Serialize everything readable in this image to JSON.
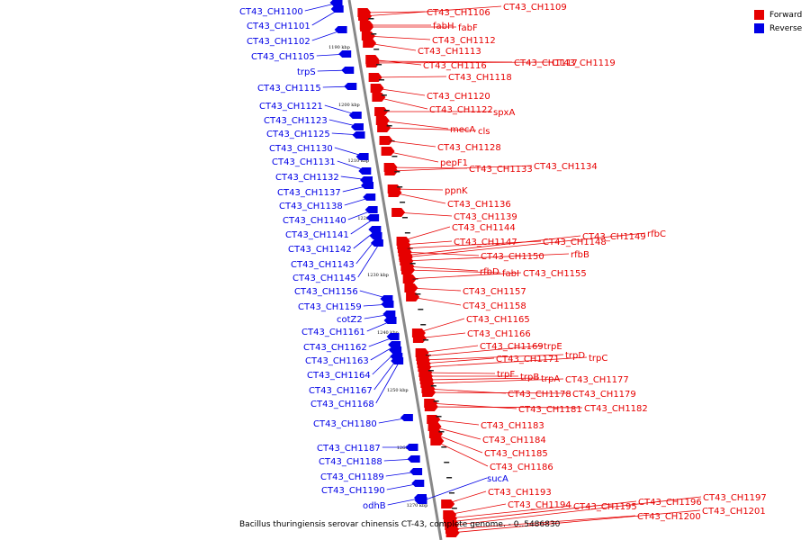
{
  "legend": [
    {
      "label": "Forward",
      "color": "#e60000"
    },
    {
      "label": "Reverse",
      "color": "#0000e6"
    }
  ],
  "colors": {
    "forward": "#e60000",
    "reverse": "#0000e6",
    "axis": "#888888"
  },
  "caption": "Bacillus thuringiensis serovar chinensis CT-43, complete genome. - 0..5486830",
  "ticks": [
    "1190 kbp",
    "1200 kbp",
    "1210 kbp",
    "1220 kbp",
    "1230 kbp",
    "1240 kbp",
    "1250 kbp",
    "1260 kbp",
    "1270 kbp"
  ],
  "reverse_labels": [
    "CT43_CH1100",
    "CT43_CH1101",
    "CT43_CH1102",
    "CT43_CH1105",
    "trpS",
    "CT43_CH1115",
    "CT43_CH1121",
    "CT43_CH1123",
    "CT43_CH1125",
    "CT43_CH1130",
    "CT43_CH1131",
    "CT43_CH1132",
    "CT43_CH1137",
    "CT43_CH1138",
    "CT43_CH1140",
    "CT43_CH1141",
    "CT43_CH1142",
    "CT43_CH1143",
    "CT43_CH1145",
    "CT43_CH1156",
    "CT43_CH1159",
    "cotZ2",
    "CT43_CH1161",
    "CT43_CH1162",
    "CT43_CH1163",
    "CT43_CH1164",
    "CT43_CH1167",
    "CT43_CH1168",
    "CT43_CH1180",
    "CT43_CH1187",
    "CT43_CH1188",
    "CT43_CH1189",
    "CT43_CH1190",
    "odhB",
    "sucA"
  ],
  "forward_labels": [
    "CT43_CH1106",
    "CT43_CH1109",
    "fabH",
    "fabF",
    "CT43_CH1112",
    "CT43_CH1113",
    "CT43_CH1116",
    "CT43_CH1117",
    "CT43_CH1119",
    "CT43_CH1118",
    "CT43_CH1120",
    "CT43_CH1122",
    "spxA",
    "mecA",
    "cls",
    "CT43_CH1128",
    "pepF1",
    "CT43_CH1133",
    "CT43_CH1134",
    "ppnK",
    "CT43_CH1136",
    "CT43_CH1139",
    "CT43_CH1144",
    "CT43_CH1149",
    "rfbC",
    "CT43_CH1147",
    "CT43_CH1148",
    "CT43_CH1150",
    "rfbB",
    "rfbD",
    "fabI",
    "CT43_CH1155",
    "CT43_CH1157",
    "CT43_CH1158",
    "CT43_CH1165",
    "CT43_CH1166",
    "CT43_CH1169",
    "trpE",
    "trpD",
    "CT43_CH1171",
    "trpC",
    "trpF",
    "trpB",
    "trpA",
    "CT43_CH1177",
    "CT43_CH1178",
    "CT43_CH1179",
    "CT43_CH1181",
    "CT43_CH1182",
    "CT43_CH1183",
    "CT43_CH1184",
    "CT43_CH1185",
    "CT43_CH1186",
    "CT43_CH1193",
    "CT43_CH1194",
    "CT43_CH1195",
    "CT43_CH1196",
    "CT43_CH1197",
    "CT43_CH1200",
    "CT43_CH1201"
  ]
}
